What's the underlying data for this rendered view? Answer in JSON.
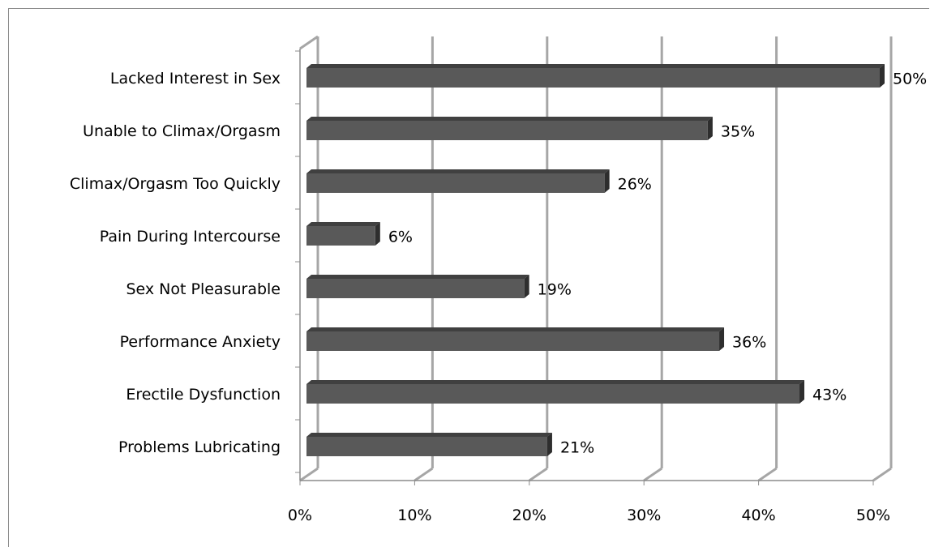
{
  "chart_data": {
    "type": "bar",
    "orientation": "horizontal",
    "style": "3d",
    "categories": [
      "Lacked Interest in Sex",
      "Unable to Climax/Orgasm",
      "Climax/Orgasm Too Quickly",
      "Pain During Intercourse",
      "Sex Not Pleasurable",
      "Performance Anxiety",
      "Erectile Dysfunction",
      "Problems Lubricating"
    ],
    "values": [
      50,
      35,
      26,
      6,
      19,
      36,
      43,
      21
    ],
    "data_labels": [
      "50%",
      "35%",
      "26%",
      "6%",
      "19%",
      "36%",
      "43%",
      "21%"
    ],
    "x_ticks": [
      "0%",
      "10%",
      "20%",
      "30%",
      "40%",
      "50%"
    ],
    "xlim": [
      0,
      50
    ],
    "grid": true,
    "legend": "none",
    "title": "",
    "xlabel": "",
    "ylabel": "",
    "colors": {
      "bar_front": "#595959",
      "bar_top": "#404040",
      "bar_side": "#2e2e2e",
      "gridline": "#a6a6a6",
      "axis": "#8c8c8c"
    }
  }
}
